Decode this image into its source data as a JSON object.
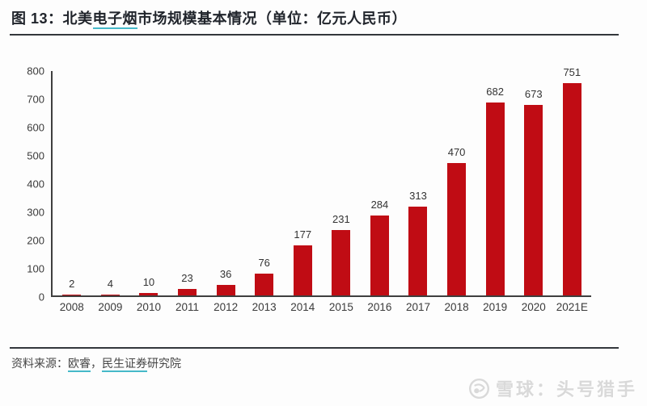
{
  "header": {
    "title_prefix": "图 13：北美",
    "title_keyword": "电子烟",
    "title_suffix": "市场规模基本情况（单位：亿元人民币）"
  },
  "chart_data": {
    "type": "bar",
    "title": "北美电子烟市场规模基本情况",
    "unit": "亿元人民币",
    "categories": [
      "2008",
      "2009",
      "2010",
      "2011",
      "2012",
      "2013",
      "2014",
      "2015",
      "2016",
      "2017",
      "2018",
      "2019",
      "2020",
      "2021E"
    ],
    "values": [
      2,
      4,
      10,
      23,
      36,
      76,
      177,
      231,
      284,
      313,
      470,
      682,
      673,
      751
    ],
    "xlabel": "",
    "ylabel": "",
    "ylim": [
      0,
      800
    ],
    "yticks": [
      0,
      100,
      200,
      300,
      400,
      500,
      600,
      700,
      800
    ],
    "grid": false,
    "legend": "none",
    "bar_color": "#c00c14",
    "data_labels": true
  },
  "footer": {
    "source_prefix": "资料来源：",
    "source_link1": "欧睿",
    "source_sep": "，",
    "source_link2": "民生证券",
    "source_suffix": "研究院"
  },
  "watermark": {
    "icon": "xueqiu-logo-icon",
    "text": "雪球：头号猎手"
  },
  "colors": {
    "bar": "#c00c14",
    "link_underline": "#46b9c9",
    "divider": "#33373c",
    "title_text": "#21252c",
    "axis": "#3f3f3f",
    "watermark": "#d9d9d9"
  }
}
